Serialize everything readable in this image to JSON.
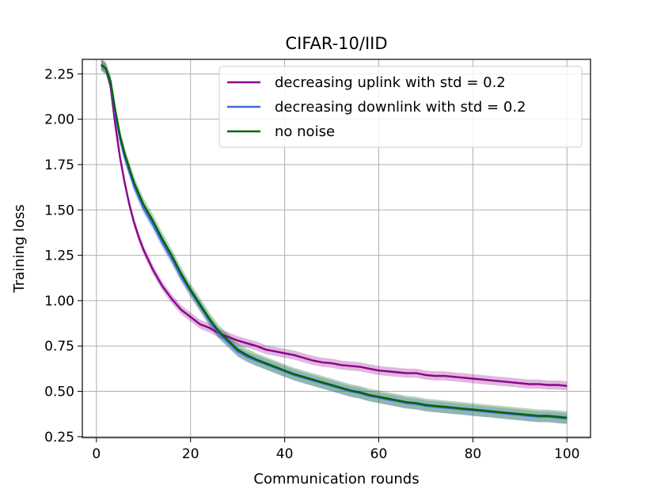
{
  "chart_data": {
    "type": "line",
    "title": "CIFAR-10/IID",
    "xlabel": "Communication rounds",
    "ylabel": "Training loss",
    "xlim": [
      -3,
      105
    ],
    "ylim": [
      0.245,
      2.33
    ],
    "grid": true,
    "xticks": [
      0,
      20,
      40,
      60,
      80,
      100
    ],
    "yticks": [
      0.25,
      0.5,
      0.75,
      1.0,
      1.25,
      1.5,
      1.75,
      2.0,
      2.25
    ],
    "xtick_labels": [
      "0",
      "20",
      "40",
      "60",
      "80",
      "100"
    ],
    "ytick_labels": [
      "0.25",
      "0.50",
      "0.75",
      "1.00",
      "1.25",
      "1.50",
      "1.75",
      "2.00",
      "2.25"
    ],
    "legend_position": "top-right",
    "series": [
      {
        "name": "decreasing uplink with std = 0.2",
        "color": "#8b008b",
        "band": 0.025,
        "x": [
          1,
          2,
          3,
          4,
          5,
          6,
          7,
          8,
          9,
          10,
          12,
          14,
          16,
          18,
          20,
          22,
          24,
          26,
          28,
          30,
          32,
          34,
          36,
          38,
          40,
          42,
          44,
          46,
          48,
          50,
          52,
          54,
          56,
          58,
          60,
          62,
          64,
          66,
          68,
          70,
          72,
          74,
          76,
          78,
          80,
          82,
          84,
          86,
          88,
          90,
          92,
          94,
          96,
          98,
          100
        ],
        "y": [
          2.3,
          2.28,
          2.18,
          1.97,
          1.79,
          1.65,
          1.53,
          1.43,
          1.35,
          1.28,
          1.17,
          1.08,
          1.01,
          0.95,
          0.91,
          0.87,
          0.85,
          0.82,
          0.8,
          0.78,
          0.765,
          0.75,
          0.73,
          0.72,
          0.71,
          0.7,
          0.685,
          0.67,
          0.66,
          0.655,
          0.645,
          0.64,
          0.635,
          0.625,
          0.615,
          0.61,
          0.605,
          0.6,
          0.6,
          0.59,
          0.585,
          0.585,
          0.58,
          0.575,
          0.57,
          0.565,
          0.56,
          0.555,
          0.55,
          0.545,
          0.54,
          0.54,
          0.535,
          0.535,
          0.53
        ]
      },
      {
        "name": "decreasing downlink with std = 0.2",
        "color": "#4169e1",
        "band": 0.03,
        "x": [
          1,
          2,
          3,
          4,
          5,
          6,
          7,
          8,
          9,
          10,
          12,
          14,
          16,
          18,
          20,
          22,
          24,
          26,
          28,
          30,
          32,
          34,
          36,
          38,
          40,
          42,
          44,
          46,
          48,
          50,
          52,
          54,
          56,
          58,
          60,
          62,
          64,
          66,
          68,
          70,
          72,
          74,
          76,
          78,
          80,
          82,
          84,
          86,
          88,
          90,
          92,
          94,
          96,
          98,
          100
        ],
        "y": [
          2.3,
          2.28,
          2.2,
          2.03,
          1.89,
          1.79,
          1.71,
          1.63,
          1.57,
          1.51,
          1.42,
          1.32,
          1.23,
          1.13,
          1.05,
          0.97,
          0.89,
          0.82,
          0.77,
          0.72,
          0.69,
          0.67,
          0.65,
          0.63,
          0.61,
          0.59,
          0.575,
          0.56,
          0.545,
          0.53,
          0.515,
          0.5,
          0.49,
          0.475,
          0.465,
          0.455,
          0.445,
          0.435,
          0.43,
          0.42,
          0.415,
          0.41,
          0.405,
          0.4,
          0.395,
          0.39,
          0.385,
          0.38,
          0.375,
          0.37,
          0.365,
          0.36,
          0.36,
          0.355,
          0.35
        ]
      },
      {
        "name": "no noise",
        "color": "#006400",
        "band": 0.035,
        "x": [
          1,
          2,
          3,
          4,
          5,
          6,
          7,
          8,
          9,
          10,
          12,
          14,
          16,
          18,
          20,
          22,
          24,
          26,
          28,
          30,
          32,
          34,
          36,
          38,
          40,
          42,
          44,
          46,
          48,
          50,
          52,
          54,
          56,
          58,
          60,
          62,
          64,
          66,
          68,
          70,
          72,
          74,
          76,
          78,
          80,
          82,
          84,
          86,
          88,
          90,
          92,
          94,
          96,
          98,
          100
        ],
        "y": [
          2.3,
          2.28,
          2.21,
          2.05,
          1.91,
          1.81,
          1.73,
          1.65,
          1.59,
          1.53,
          1.44,
          1.34,
          1.25,
          1.15,
          1.06,
          0.98,
          0.9,
          0.83,
          0.78,
          0.73,
          0.7,
          0.675,
          0.655,
          0.635,
          0.615,
          0.595,
          0.58,
          0.565,
          0.55,
          0.535,
          0.52,
          0.505,
          0.495,
          0.48,
          0.47,
          0.46,
          0.45,
          0.44,
          0.435,
          0.425,
          0.42,
          0.415,
          0.41,
          0.405,
          0.4,
          0.395,
          0.39,
          0.385,
          0.38,
          0.375,
          0.37,
          0.365,
          0.365,
          0.36,
          0.355
        ]
      }
    ]
  }
}
